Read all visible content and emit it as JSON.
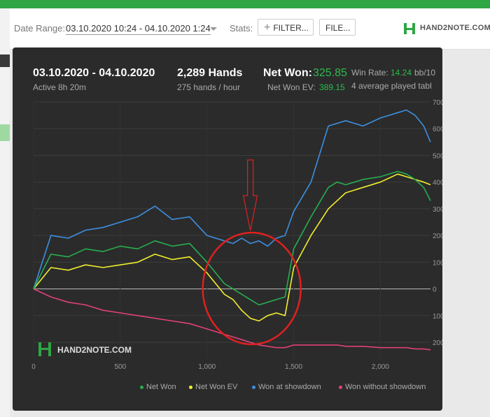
{
  "header": {
    "date_range_label": "Date Range:",
    "date_range_value": "03.10.2020 10:24 - 04.10.2020 1:24",
    "stats_label": "Stats:",
    "filter_label": "FILTER...",
    "file_label": "FILE...",
    "logo_text": "HAND2NOTE.COM"
  },
  "stats": {
    "dates": "03.10.2020 - 04.10.2020",
    "active": "Active 8h 20m",
    "hands": "2,289 Hands",
    "hands_per_hour": "275 hands / hour",
    "net_won_label": "Net Won:",
    "net_won_value": "325.85",
    "net_won_ev_label": "Net Won  EV:",
    "net_won_ev_value": "389.15",
    "win_rate_label": "Win Rate:",
    "win_rate_value": "14.24",
    "win_rate_unit": "bb/10",
    "tables": "4 average played tabl"
  },
  "watermark": "HAND2NOTE.COM",
  "colors": {
    "net_won": "#27ae4e",
    "net_won_ev": "#f0ee2e",
    "showdown": "#3d8fe0",
    "non_showdown": "#e0407a",
    "accent": "#2fa544",
    "annotation": "#e02020"
  },
  "chart_data": {
    "type": "line",
    "xlim": [
      0,
      2289
    ],
    "ylim": [
      -260,
      700
    ],
    "x_ticks": [
      0,
      500,
      1000,
      1500,
      2000
    ],
    "x_tick_labels": [
      "0",
      "500",
      "1,000",
      "1,500",
      "2,000"
    ],
    "y_ticks": [
      700,
      600,
      500,
      400,
      300,
      200,
      100,
      0,
      -100,
      -200
    ],
    "y_tick_labels": [
      "700",
      "600",
      "500",
      "400",
      "300",
      "200",
      "100",
      "0",
      "100",
      "200"
    ],
    "x": [
      0,
      100,
      200,
      300,
      400,
      500,
      600,
      700,
      800,
      900,
      1000,
      1100,
      1150,
      1200,
      1250,
      1300,
      1350,
      1400,
      1450,
      1500,
      1600,
      1700,
      1750,
      1800,
      1900,
      2000,
      2100,
      2150,
      2200,
      2250,
      2289
    ],
    "series": [
      {
        "name": "Net Won",
        "key": "net_won",
        "values": [
          0,
          130,
          120,
          150,
          140,
          160,
          150,
          180,
          160,
          170,
          100,
          20,
          0,
          -20,
          -40,
          -60,
          -50,
          -40,
          -30,
          150,
          270,
          380,
          400,
          390,
          410,
          420,
          440,
          430,
          410,
          380,
          330
        ]
      },
      {
        "name": "Net Won  EV",
        "key": "net_won_ev",
        "values": [
          0,
          80,
          70,
          90,
          80,
          90,
          100,
          130,
          110,
          120,
          60,
          -20,
          -40,
          -80,
          -110,
          -120,
          -100,
          -90,
          -100,
          80,
          200,
          300,
          330,
          360,
          380,
          400,
          430,
          420,
          410,
          400,
          390
        ]
      },
      {
        "name": "Won at showdown",
        "key": "showdown",
        "values": [
          0,
          200,
          190,
          220,
          230,
          250,
          270,
          310,
          260,
          270,
          200,
          180,
          170,
          190,
          170,
          180,
          160,
          190,
          200,
          290,
          400,
          610,
          620,
          630,
          610,
          640,
          660,
          670,
          650,
          610,
          550
        ]
      },
      {
        "name": "Won without showdown",
        "key": "non_showdown",
        "values": [
          0,
          -30,
          -50,
          -60,
          -80,
          -90,
          -100,
          -110,
          -120,
          -130,
          -150,
          -170,
          -180,
          -190,
          -200,
          -210,
          -215,
          -220,
          -220,
          -210,
          -210,
          -210,
          -210,
          -215,
          -215,
          -220,
          -220,
          -220,
          -225,
          -225,
          -228
        ]
      }
    ],
    "legend_position": "bottom",
    "grid": true
  }
}
